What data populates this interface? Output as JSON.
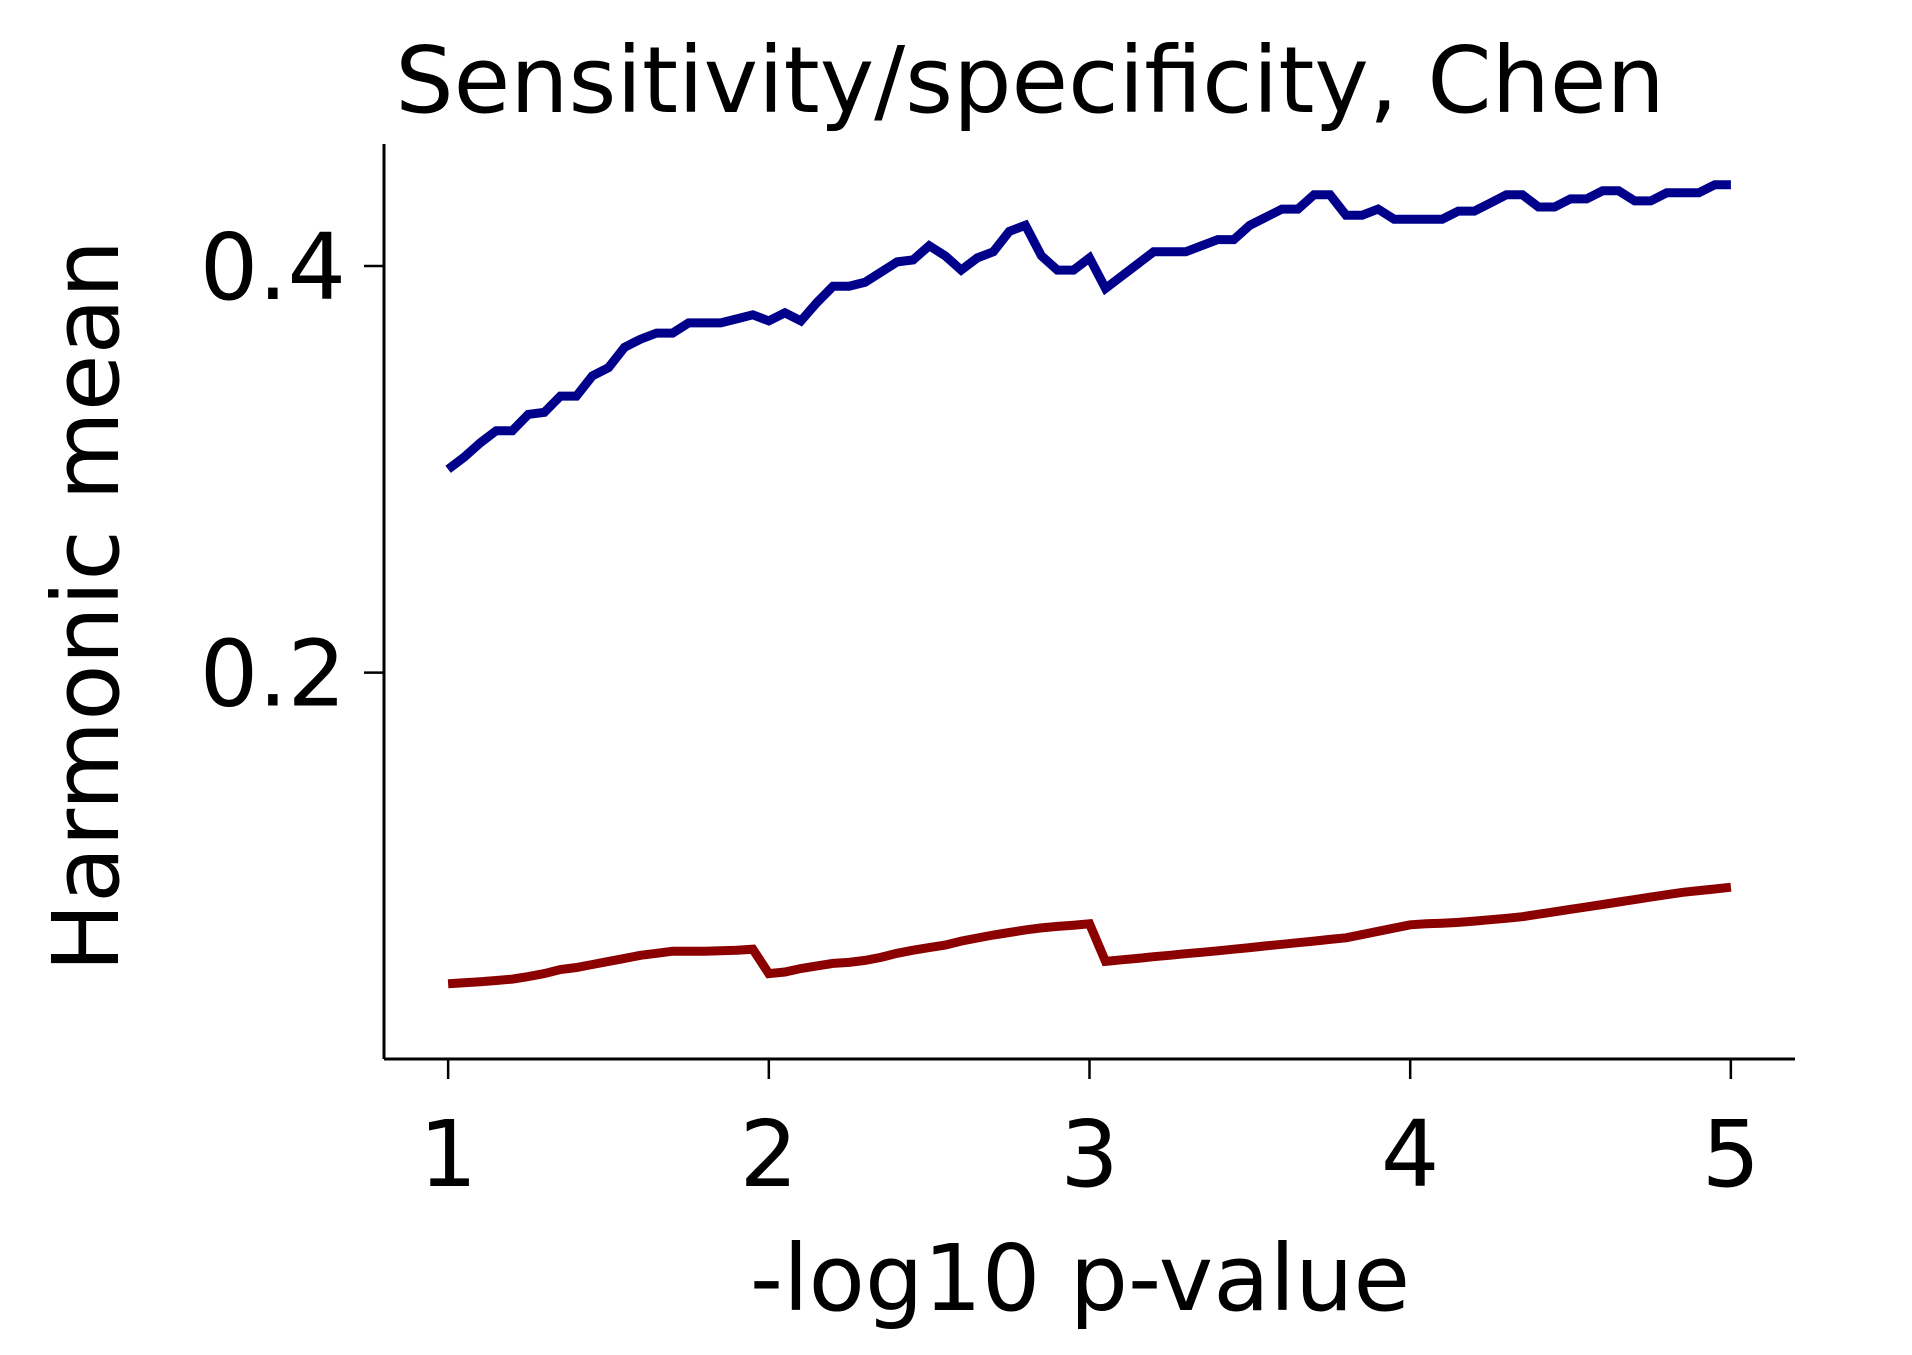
{
  "chart_data": {
    "type": "line",
    "title": "Sensitivity/specificity, Chen",
    "xlabel": "-log10 p-value",
    "ylabel": "Harmonic mean",
    "xlim": [
      0.8,
      5.2
    ],
    "ylim": [
      0.01,
      0.46
    ],
    "xticks": [
      1,
      2,
      3,
      4,
      5
    ],
    "xtick_labels": [
      "1",
      "2",
      "3",
      "4",
      "5"
    ],
    "yticks": [
      0.2,
      0.4
    ],
    "ytick_labels": [
      "0.2",
      "0.4"
    ],
    "grid": false,
    "series": [
      {
        "color": "#00008b",
        "x": [
          1.0,
          1.05,
          1.1,
          1.15,
          1.2,
          1.25,
          1.3,
          1.35,
          1.4,
          1.45,
          1.5,
          1.55,
          1.6,
          1.65,
          1.7,
          1.75,
          1.8,
          1.85,
          1.9,
          1.95,
          2.0,
          2.05,
          2.1,
          2.15,
          2.2,
          2.25,
          2.3,
          2.35,
          2.4,
          2.45,
          2.5,
          2.55,
          2.6,
          2.65,
          2.7,
          2.75,
          2.8,
          2.85,
          2.9,
          2.95,
          3.0,
          3.05,
          3.1,
          3.15,
          3.2,
          3.25,
          3.3,
          3.35,
          3.4,
          3.45,
          3.5,
          3.55,
          3.6,
          3.65,
          3.7,
          3.75,
          3.8,
          3.85,
          3.9,
          3.95,
          4.0,
          4.05,
          4.1,
          4.15,
          4.2,
          4.25,
          4.3,
          4.35,
          4.4,
          4.45,
          4.5,
          4.55,
          4.6,
          4.65,
          4.7,
          4.75,
          4.8,
          4.85,
          4.9,
          4.95,
          5.0
        ],
        "y": [
          0.3,
          0.306,
          0.313,
          0.319,
          0.319,
          0.327,
          0.328,
          0.336,
          0.336,
          0.346,
          0.35,
          0.36,
          0.364,
          0.367,
          0.367,
          0.372,
          0.372,
          0.372,
          0.374,
          0.376,
          0.373,
          0.377,
          0.373,
          0.382,
          0.39,
          0.39,
          0.392,
          0.397,
          0.402,
          0.403,
          0.41,
          0.405,
          0.398,
          0.404,
          0.407,
          0.417,
          0.42,
          0.405,
          0.398,
          0.398,
          0.404,
          0.389,
          0.395,
          0.401,
          0.407,
          0.407,
          0.407,
          0.41,
          0.413,
          0.413,
          0.42,
          0.424,
          0.428,
          0.428,
          0.435,
          0.435,
          0.425,
          0.425,
          0.428,
          0.423,
          0.423,
          0.423,
          0.423,
          0.427,
          0.427,
          0.431,
          0.435,
          0.435,
          0.429,
          0.429,
          0.433,
          0.433,
          0.437,
          0.437,
          0.432,
          0.432,
          0.436,
          0.436,
          0.436,
          0.44,
          0.44
        ]
      },
      {
        "color": "#8b0000",
        "x": [
          1.0,
          1.05,
          1.1,
          1.15,
          1.2,
          1.25,
          1.3,
          1.35,
          1.4,
          1.45,
          1.5,
          1.55,
          1.6,
          1.65,
          1.7,
          1.75,
          1.8,
          1.85,
          1.9,
          1.95,
          2.0,
          2.05,
          2.1,
          2.15,
          2.2,
          2.25,
          2.3,
          2.35,
          2.4,
          2.45,
          2.5,
          2.55,
          2.6,
          2.65,
          2.7,
          2.75,
          2.8,
          2.85,
          2.9,
          2.95,
          3.0,
          3.05,
          3.1,
          3.15,
          3.2,
          3.25,
          3.3,
          3.35,
          3.4,
          3.45,
          3.5,
          3.55,
          3.6,
          3.65,
          3.7,
          3.75,
          3.8,
          3.85,
          3.9,
          3.95,
          4.0,
          4.05,
          4.1,
          4.15,
          4.2,
          4.25,
          4.3,
          4.35,
          4.4,
          4.45,
          4.5,
          4.55,
          4.6,
          4.65,
          4.7,
          4.75,
          4.8,
          4.85,
          4.9,
          4.95,
          5.0
        ],
        "y": [
          0.047,
          0.0475,
          0.048,
          0.0486,
          0.0493,
          0.0505,
          0.052,
          0.054,
          0.055,
          0.0565,
          0.058,
          0.0595,
          0.061,
          0.062,
          0.063,
          0.063,
          0.063,
          0.0632,
          0.0635,
          0.064,
          0.052,
          0.0528,
          0.0545,
          0.0558,
          0.057,
          0.0575,
          0.0585,
          0.06,
          0.062,
          0.0635,
          0.0648,
          0.066,
          0.068,
          0.0695,
          0.071,
          0.0722,
          0.0735,
          0.0745,
          0.0752,
          0.0758,
          0.0765,
          0.058,
          0.0588,
          0.0595,
          0.0603,
          0.061,
          0.0618,
          0.0625,
          0.0632,
          0.064,
          0.0648,
          0.0656,
          0.0664,
          0.0672,
          0.068,
          0.0688,
          0.0696,
          0.0712,
          0.0728,
          0.0744,
          0.076,
          0.0765,
          0.0768,
          0.0772,
          0.0778,
          0.0785,
          0.0792,
          0.08,
          0.0812,
          0.0824,
          0.0836,
          0.0848,
          0.086,
          0.0872,
          0.0884,
          0.0896,
          0.0908,
          0.092,
          0.0928,
          0.0936,
          0.0945
        ]
      }
    ]
  }
}
